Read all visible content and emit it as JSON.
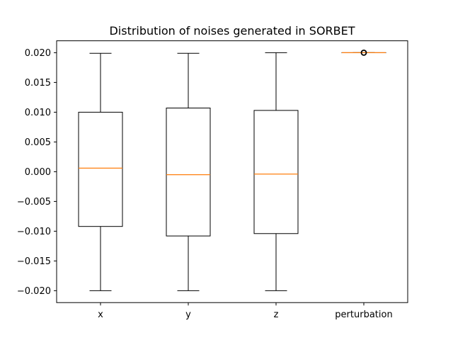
{
  "chart_data": {
    "type": "box",
    "title": "Distribution of noises generated in SORBET",
    "xlabel": "",
    "ylabel": "",
    "categories": [
      "x",
      "y",
      "z",
      "perturbation"
    ],
    "ylim": [
      -0.022,
      0.022
    ],
    "yticks": [
      -0.02,
      -0.015,
      -0.01,
      -0.005,
      0.0,
      0.005,
      0.01,
      0.015,
      0.02
    ],
    "ytick_labels": [
      "−0.020",
      "−0.015",
      "−0.010",
      "−0.005",
      "0.000",
      "0.005",
      "0.010",
      "0.015",
      "0.020"
    ],
    "grid": false,
    "boxes": [
      {
        "name": "x",
        "whisker_low": -0.02,
        "q1": -0.0092,
        "median": 0.0006,
        "q3": 0.01,
        "whisker_high": 0.0199,
        "outliers": []
      },
      {
        "name": "y",
        "whisker_low": -0.02,
        "q1": -0.0108,
        "median": -0.0005,
        "q3": 0.0107,
        "whisker_high": 0.0199,
        "outliers": []
      },
      {
        "name": "z",
        "whisker_low": -0.02,
        "q1": -0.0104,
        "median": -0.0004,
        "q3": 0.0103,
        "whisker_high": 0.02,
        "outliers": []
      },
      {
        "name": "perturbation",
        "whisker_low": 0.02,
        "q1": 0.02,
        "median": 0.02,
        "q3": 0.02,
        "whisker_high": 0.02,
        "outliers": [
          0.02
        ]
      }
    ],
    "colors": {
      "box": "#000000",
      "median": "#ff7f0e"
    }
  }
}
